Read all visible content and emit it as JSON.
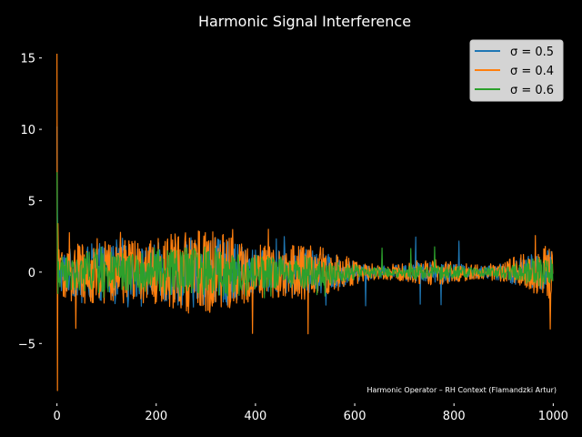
{
  "chart_data": {
    "type": "line",
    "title": "Harmonic Signal Interference",
    "xlabel": "",
    "ylabel": "",
    "xlim": [
      -25,
      1025
    ],
    "ylim": [
      -9,
      16
    ],
    "xticks": [
      0,
      200,
      400,
      600,
      800,
      1000
    ],
    "yticks": [
      -5,
      0,
      5,
      10,
      15
    ],
    "grid": false,
    "legend": "top-right",
    "annotation": "Harmonic Operator – RH Context (Flamandzki Artur)",
    "n_points": 1000,
    "series": [
      {
        "name": "σ = 0.5",
        "color": "#1f77b4",
        "initial_values": [
          10.2,
          4.1,
          1.6
        ],
        "typical_range": [
          -2.5,
          2.5
        ]
      },
      {
        "name": "σ = 0.4",
        "color": "#ff7f0e",
        "initial_values": [
          15.3,
          -8.3,
          3.4
        ],
        "typical_range": [
          -4.4,
          3.0
        ]
      },
      {
        "name": "σ = 0.6",
        "color": "#2ca02c",
        "initial_values": [
          7.0,
          0.9,
          -1.5
        ],
        "typical_range": [
          -1.8,
          1.8
        ]
      }
    ]
  }
}
